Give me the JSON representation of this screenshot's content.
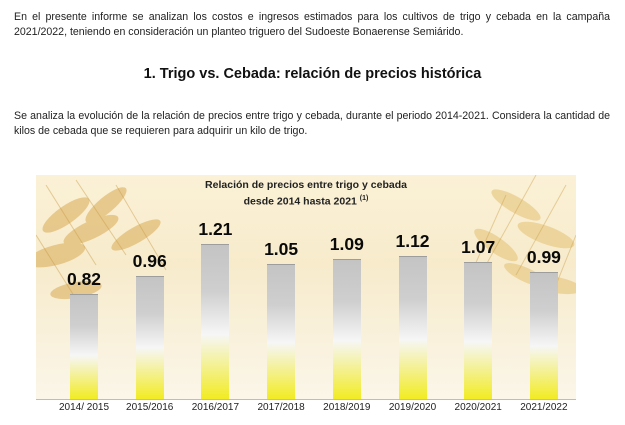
{
  "intro_text": "En el presente informe se analizan los costos e ingresos estimados para los cultivos de trigo y cebada en la campaña 2021/2022, teniendo en consideración un planteo triguero del Sudoeste Bonaerense Semiárido.",
  "section_heading": "1. Trigo vs. Cebada: relación de precios histórica",
  "analysis_text": "Se analiza la evolución de la relación de precios entre trigo y cebada, durante el periodo 2014-2021. Considera la cantidad de kilos de cebada que se requieren para adquirir un kilo de trigo.",
  "chart_data": {
    "type": "bar",
    "title_line1": "Relación de precios entre trigo y cebada",
    "title_line2": "desde 2014 hasta 2021",
    "title_footnote": "(1)",
    "categories": [
      "2014/ 2015",
      "2015/2016",
      "2016/2017",
      "2017/2018",
      "2018/2019",
      "2019/2020",
      "2020/2021",
      "2021/2022"
    ],
    "values": [
      0.82,
      0.96,
      1.21,
      1.05,
      1.09,
      1.12,
      1.07,
      0.99
    ],
    "value_labels": [
      "0.82",
      "0.96",
      "1.21",
      "1.05",
      "1.09",
      "1.12",
      "1.07",
      "0.99"
    ],
    "ylim": [
      0,
      1.21
    ],
    "grid": false,
    "colors": {
      "bar_top": "#c4c4c4",
      "bar_bottom": "#f2ec22"
    }
  }
}
